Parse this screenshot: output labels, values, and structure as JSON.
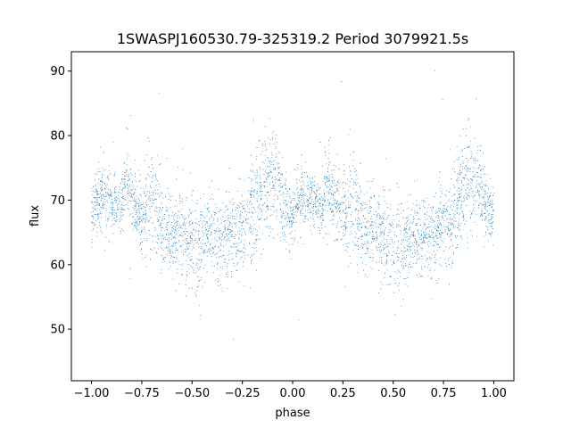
{
  "chart_data": {
    "type": "scatter",
    "title": "1SWASPJ160530.79-325319.2 Period 3079921.5s",
    "xlabel": "phase",
    "ylabel": "flux",
    "xlim": [
      -1.1,
      1.1
    ],
    "ylim": [
      42,
      93
    ],
    "xticks": [
      -1.0,
      -0.75,
      -0.5,
      -0.25,
      0.0,
      0.25,
      0.5,
      0.75,
      1.0
    ],
    "xtick_labels": [
      "−1.00",
      "−0.75",
      "−0.50",
      "−0.25",
      "0.00",
      "0.25",
      "0.50",
      "0.75",
      "1.00"
    ],
    "yticks": [
      50,
      60,
      70,
      80,
      90
    ],
    "ytick_labels": [
      "50",
      "60",
      "70",
      "80",
      "90"
    ],
    "grid": false,
    "series": [
      {
        "color": "#1f77b4",
        "marker_size": "tiny",
        "x": [
          -1.0,
          -0.975,
          -0.95,
          -0.925,
          -0.9,
          -0.875,
          -0.85,
          -0.825,
          -0.8,
          -0.775,
          -0.75,
          -0.725,
          -0.7,
          -0.675,
          -0.65,
          -0.625,
          -0.6,
          -0.575,
          -0.55,
          -0.525,
          -0.5,
          -0.475,
          -0.45,
          -0.425,
          -0.4,
          -0.375,
          -0.35,
          -0.325,
          -0.3,
          -0.275,
          -0.25,
          -0.225,
          -0.2,
          -0.175,
          -0.15,
          -0.125,
          -0.1,
          -0.075,
          -0.05,
          -0.025,
          0.0,
          0.025,
          0.05,
          0.075,
          0.1,
          0.125,
          0.15,
          0.175,
          0.2,
          0.225,
          0.25,
          0.275,
          0.3,
          0.325,
          0.35,
          0.375,
          0.4,
          0.425,
          0.45,
          0.475,
          0.5,
          0.525,
          0.55,
          0.575,
          0.6,
          0.625,
          0.65,
          0.675,
          0.7,
          0.725,
          0.75,
          0.775,
          0.8,
          0.825,
          0.85,
          0.875,
          0.9,
          0.925,
          0.95,
          0.975,
          1.0
        ],
        "y": [
          68,
          70,
          70.5,
          70,
          69.5,
          69,
          69,
          74,
          70,
          68.5,
          68,
          69,
          70,
          68,
          66,
          65.5,
          65,
          65,
          64.5,
          64,
          64,
          63,
          63,
          64.5,
          65,
          64,
          64,
          65,
          64.5,
          65,
          66,
          67,
          68.5,
          70,
          71,
          72,
          73,
          72,
          70,
          68,
          68,
          70,
          70.5,
          70,
          69.5,
          69,
          69,
          74,
          70,
          68.5,
          68,
          69,
          70,
          68,
          66,
          65.5,
          65,
          65,
          64.5,
          64,
          64,
          63,
          63,
          64.5,
          65,
          64,
          64,
          65,
          64.5,
          65,
          66,
          67,
          68.5,
          70,
          71,
          72,
          73,
          72,
          70,
          68,
          68
        ],
        "spread": [
          3,
          3,
          3,
          3,
          3,
          2.5,
          2.5,
          4,
          3,
          3,
          4,
          5,
          5,
          5,
          4,
          4,
          4,
          4,
          4,
          4,
          5,
          5,
          4,
          4,
          4,
          4,
          4,
          4,
          4,
          4,
          4,
          4,
          5,
          5,
          5,
          5,
          5,
          5,
          4,
          3,
          3,
          3,
          3,
          3,
          3,
          2.5,
          2.5,
          4,
          3,
          3,
          4,
          5,
          5,
          5,
          4,
          4,
          4,
          4,
          4,
          4,
          5,
          5,
          4,
          4,
          4,
          4,
          4,
          4,
          4,
          4,
          4,
          4,
          5,
          5,
          5,
          5,
          5,
          5,
          4,
          3,
          3
        ]
      }
    ]
  }
}
